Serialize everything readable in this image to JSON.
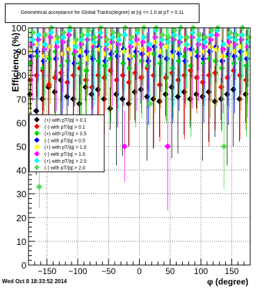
{
  "title": "Geometrical acceptance for Global Tracks(degree) at |η| <= 1.0 at pT > 0.11",
  "timestamp": "Wed Oct  8 18:33:52 2014",
  "colors": {
    "black": "#000000",
    "red": "#ff0000",
    "green": "#00dd00",
    "blue": "#0000ff",
    "yellow": "#ffff00",
    "magenta": "#ff00ff",
    "cyan": "#00ffff",
    "lightgreen": "#55dd55"
  },
  "chart_data": {
    "type": "scatter",
    "title": "Geometrical acceptance for Global Tracks(degree) at |η| <= 1.0 at pT > 0.11",
    "xlabel": "φ (degree)",
    "ylabel": "Efficiency (%)",
    "xlim": [
      -180,
      180
    ],
    "ylim": [
      0,
      100
    ],
    "xticks": [
      -150,
      -100,
      -50,
      0,
      50,
      100,
      150
    ],
    "yticks": [
      0,
      10,
      20,
      30,
      40,
      50,
      60,
      70,
      80,
      90,
      100
    ],
    "grid": true,
    "legend_position": "left-middle",
    "series": [
      {
        "name": "(+) with pT/|q| > 0.1",
        "color": "#000000",
        "x": [
          -175,
          -165,
          -155,
          -145,
          -135,
          -125,
          -115,
          -105,
          -95,
          -85,
          -75,
          -65,
          -55,
          -45,
          -35,
          -25,
          -15,
          -5,
          5,
          15,
          25,
          35,
          45,
          55,
          65,
          75,
          85,
          95,
          105,
          115,
          125,
          135,
          145,
          155,
          165,
          175
        ],
        "values": [
          72,
          65,
          70,
          75,
          73,
          78,
          71,
          70,
          68,
          75,
          72,
          74,
          70,
          66,
          72,
          70,
          68,
          73,
          74,
          71,
          70,
          69,
          72,
          75,
          71,
          73,
          70,
          72,
          71,
          73,
          69,
          70,
          72,
          74,
          70,
          72
        ]
      },
      {
        "name": "(-) with pT/|q| > 0.1",
        "color": "#ff0000",
        "x": [
          -175,
          -165,
          -155,
          -145,
          -135,
          -125,
          -115,
          -105,
          -95,
          -85,
          -75,
          -65,
          -55,
          -45,
          -35,
          -25,
          -15,
          -5,
          5,
          15,
          25,
          35,
          45,
          55,
          65,
          75,
          85,
          95,
          105,
          115,
          125,
          135,
          145,
          155,
          165,
          175
        ],
        "values": [
          78,
          80,
          82,
          76,
          79,
          81,
          77,
          80,
          83,
          78,
          75,
          80,
          79,
          82,
          78,
          80,
          77,
          81,
          79,
          83,
          80,
          76,
          79,
          81,
          78,
          80,
          82,
          79,
          77,
          80,
          81,
          75,
          79,
          82,
          80,
          78
        ]
      },
      {
        "name": "(+) with pT/|q| > 0.5",
        "color": "#00dd00",
        "x": [
          -175,
          -165,
          -155,
          -145,
          -135,
          -125,
          -115,
          -105,
          -95,
          -85,
          -75,
          -65,
          -55,
          -45,
          -35,
          -25,
          -15,
          -5,
          5,
          15,
          25,
          35,
          45,
          55,
          65,
          75,
          85,
          95,
          105,
          115,
          125,
          135,
          145,
          155,
          165,
          175
        ],
        "values": [
          85,
          88,
          83,
          87,
          90,
          84,
          86,
          89,
          85,
          82,
          88,
          86,
          84,
          87,
          90,
          85,
          83,
          88,
          86,
          84,
          89,
          85,
          87,
          83,
          86,
          88,
          84,
          90,
          85,
          87,
          86,
          83,
          88,
          85,
          87,
          84
        ]
      },
      {
        "name": "(-) with pT/|q| > 0.5",
        "color": "#0000ff",
        "x": [
          -175,
          -165,
          -155,
          -145,
          -135,
          -125,
          -115,
          -105,
          -95,
          -85,
          -75,
          -65,
          -55,
          -45,
          -35,
          -25,
          -15,
          -5,
          5,
          15,
          25,
          35,
          45,
          55,
          65,
          75,
          85,
          95,
          105,
          115,
          125,
          135,
          145,
          155,
          165,
          175
        ],
        "values": [
          88,
          90,
          86,
          92,
          87,
          89,
          91,
          85,
          88,
          90,
          87,
          92,
          86,
          89,
          88,
          91,
          87,
          90,
          89,
          86,
          92,
          88,
          87,
          90,
          89,
          86,
          91,
          88,
          87,
          90,
          92,
          86,
          89,
          88,
          90,
          87
        ]
      },
      {
        "name": "(+) with pT/|q| > 1.0",
        "color": "#ffff00",
        "x": [
          -175,
          -165,
          -155,
          -145,
          -135,
          -125,
          -115,
          -105,
          -95,
          -85,
          -75,
          -65,
          -55,
          -45,
          -35,
          -25,
          -15,
          -5,
          5,
          15,
          25,
          35,
          45,
          55,
          65,
          75,
          85,
          95,
          105,
          115,
          125,
          135,
          145,
          155,
          165,
          175
        ],
        "values": [
          90,
          93,
          88,
          92,
          95,
          89,
          91,
          94,
          90,
          87,
          93,
          91,
          89,
          92,
          95,
          90,
          88,
          93,
          91,
          89,
          94,
          90,
          92,
          88,
          91,
          93,
          89,
          95,
          90,
          92,
          91,
          88,
          93,
          90,
          92,
          89
        ]
      },
      {
        "name": "(-) with pT/|q| > 1.0",
        "color": "#ff00ff",
        "x": [
          -175,
          -165,
          -155,
          -145,
          -135,
          -125,
          -115,
          -105,
          -95,
          -85,
          -75,
          -65,
          -55,
          -45,
          -35,
          -25,
          -15,
          -5,
          5,
          15,
          25,
          35,
          45,
          55,
          65,
          75,
          85,
          95,
          105,
          115,
          125,
          135,
          145,
          155,
          165,
          175
        ],
        "values": [
          93,
          95,
          91,
          96,
          92,
          94,
          97,
          90,
          93,
          95,
          92,
          96,
          91,
          94,
          93,
          50,
          92,
          95,
          94,
          91,
          96,
          93,
          50,
          95,
          94,
          91,
          96,
          93,
          92,
          95,
          97,
          91,
          94,
          93,
          95,
          92
        ]
      },
      {
        "name": "(+) with pT/|q| > 2.0",
        "color": "#00ffff",
        "x": [
          -175,
          -165,
          -155,
          -145,
          -135,
          -125,
          -115,
          -105,
          -95,
          -85,
          -75,
          -65,
          -55,
          -45,
          -35,
          -25,
          -15,
          -5,
          5,
          15,
          25,
          35,
          45,
          55,
          65,
          75,
          85,
          95,
          105,
          115,
          125,
          135,
          145,
          155,
          165,
          175
        ],
        "values": [
          95,
          97,
          93,
          98,
          94,
          96,
          99,
          92,
          95,
          97,
          94,
          98,
          93,
          96,
          95,
          97,
          94,
          98,
          96,
          93,
          99,
          95,
          94,
          97,
          96,
          93,
          98,
          95,
          94,
          97,
          99,
          93,
          96,
          95,
          97,
          94
        ]
      },
      {
        "name": "(-) with pT/|q| > 2.0",
        "color": "#55dd55",
        "x": [
          -175,
          -165,
          -155,
          -145,
          -135,
          -125,
          -115,
          -105,
          -95,
          -85,
          -75,
          -65,
          -55,
          -45,
          -35,
          -25,
          -15,
          -5,
          5,
          15,
          25,
          35,
          45,
          55,
          65,
          75,
          85,
          95,
          105,
          115,
          125,
          135,
          145,
          155,
          165,
          175
        ],
        "values": [
          98,
          33,
          97,
          100,
          96,
          98,
          100,
          95,
          97,
          99,
          96,
          100,
          95,
          98,
          97,
          100,
          96,
          99,
          100,
          68,
          100,
          97,
          96,
          99,
          100,
          96,
          100,
          97,
          96,
          99,
          100,
          50,
          98,
          97,
          100,
          96
        ]
      }
    ]
  }
}
